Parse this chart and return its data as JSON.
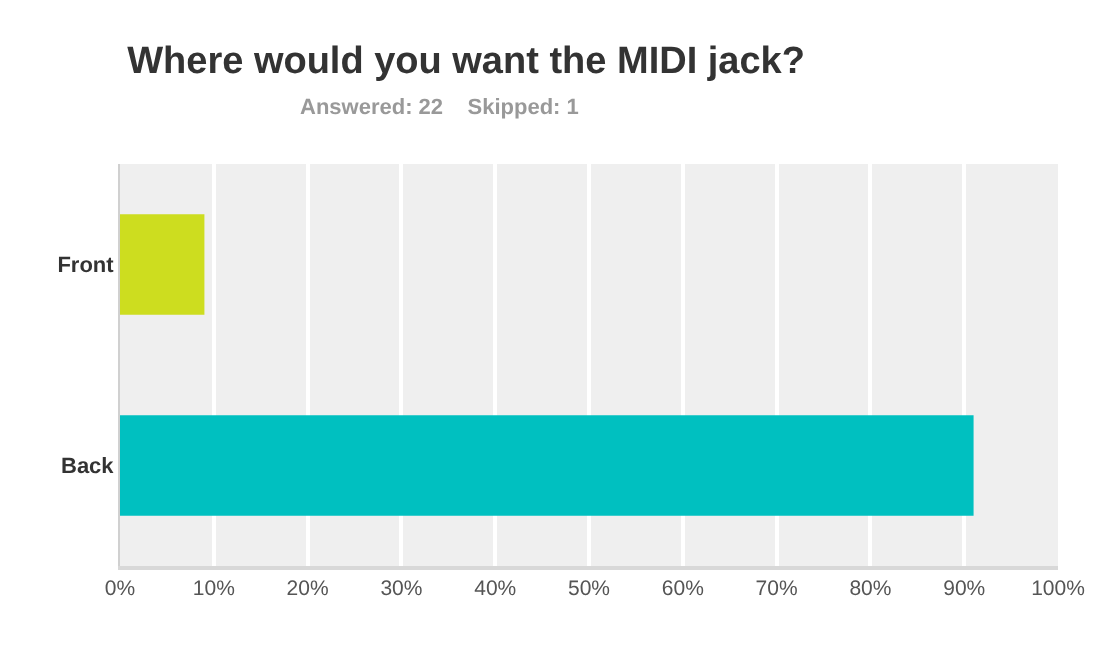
{
  "chart_data": {
    "type": "bar",
    "orientation": "horizontal",
    "title": "Where would you want the MIDI jack?",
    "subtitle": "Answered: 22    Skipped: 1",
    "categories": [
      "Front",
      "Back"
    ],
    "series": [
      {
        "values": [
          9,
          91
        ],
        "colors": [
          "#cddd1f",
          "#00c0c0"
        ]
      }
    ],
    "xlim": [
      0,
      100
    ],
    "xticks": [
      {
        "value": 0,
        "label": "0%"
      },
      {
        "value": 10,
        "label": "10%"
      },
      {
        "value": 20,
        "label": "20%"
      },
      {
        "value": 30,
        "label": "30%"
      },
      {
        "value": 40,
        "label": "40%"
      },
      {
        "value": 50,
        "label": "50%"
      },
      {
        "value": 60,
        "label": "60%"
      },
      {
        "value": 70,
        "label": "70%"
      },
      {
        "value": 80,
        "label": "80%"
      },
      {
        "value": 90,
        "label": "90%"
      },
      {
        "value": 100,
        "label": "100%"
      }
    ],
    "grid": "x"
  }
}
